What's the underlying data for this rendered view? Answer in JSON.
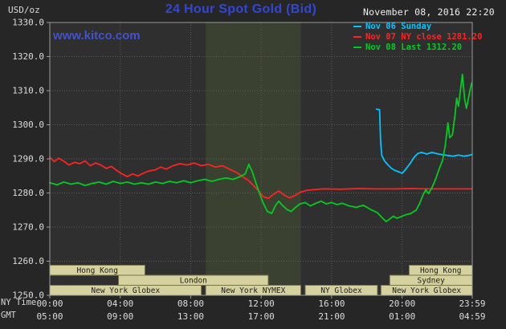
{
  "header": {
    "units": "USD/oz",
    "title": "24 Hour Spot Gold (Bid)",
    "datetime": "November 08, 2016 22:20",
    "watermark": "www.kitco.com",
    "legend": [
      {
        "label": "Nov 06 Sunday",
        "color": "#00c5ff"
      },
      {
        "label": "Nov 07 NY close 1281.20",
        "color": "#ff2222"
      },
      {
        "label": "Nov 08 Last 1312.20",
        "color": "#00cc22"
      }
    ]
  },
  "axes": {
    "x_ny_label": "NY Time",
    "x_gmt_label": "GMT",
    "y_ticks": [
      "1330.0",
      "1320.0",
      "1310.0",
      "1300.0",
      "1290.0",
      "1280.0",
      "1270.0",
      "1260.0",
      "1250.0"
    ],
    "x_ny_ticks": [
      "00:00",
      "04:00",
      "08:00",
      "12:00",
      "16:00",
      "20:00",
      "23:59"
    ],
    "x_gmt_ticks": [
      "05:00",
      "09:00",
      "13:00",
      "17:00",
      "21:00",
      "01:00",
      "04:59"
    ]
  },
  "colors": {
    "page_bg": "#262626",
    "plot_bg": "#2f2f2f",
    "band": "#3a4131",
    "border": "#9a9a9a",
    "grid": "#5a5a5a",
    "axis_text": "#dcdcdc",
    "title_blue": "#3347d1",
    "link_blue": "#4152cc",
    "session_fill": "#d6d2a0",
    "session_border": "#77744e",
    "session_text": "#1c1c1c"
  },
  "chart_data": {
    "type": "line",
    "title": "24 Hour Spot Gold (Bid)",
    "ylabel": "USD/oz",
    "ylim": [
      1250,
      1330
    ],
    "xlim_hours": [
      0,
      23.983
    ],
    "grid": true,
    "legend_position": "top-right",
    "x_ticks_hours": [
      0,
      4,
      8,
      12,
      16,
      20,
      23.983
    ],
    "y_tick_step": 10,
    "nymex_band_hours": [
      8.85,
      14.25
    ],
    "series": [
      {
        "name": "Nov 06 Sunday",
        "color": "#00c5ff",
        "points": [
          [
            18.55,
            1304.6
          ],
          [
            18.72,
            1304.4
          ],
          [
            18.78,
            1295.0
          ],
          [
            18.85,
            1291.0
          ],
          [
            19.0,
            1289.4
          ],
          [
            19.2,
            1288.2
          ],
          [
            19.4,
            1287.2
          ],
          [
            19.6,
            1286.6
          ],
          [
            19.8,
            1286.2
          ],
          [
            20.0,
            1285.8
          ],
          [
            20.15,
            1286.6
          ],
          [
            20.3,
            1287.6
          ],
          [
            20.5,
            1289.0
          ],
          [
            20.7,
            1290.6
          ],
          [
            20.9,
            1291.6
          ],
          [
            21.1,
            1291.9
          ],
          [
            21.4,
            1291.4
          ],
          [
            21.7,
            1291.9
          ],
          [
            22.0,
            1291.5
          ],
          [
            22.3,
            1291.2
          ],
          [
            22.6,
            1291.0
          ],
          [
            22.9,
            1290.8
          ],
          [
            23.2,
            1291.1
          ],
          [
            23.5,
            1290.8
          ],
          [
            23.75,
            1291.0
          ],
          [
            23.98,
            1291.3
          ]
        ]
      },
      {
        "name": "Nov 07 NY close 1281.20",
        "color": "#ff2222",
        "points": [
          [
            0,
            1290.5
          ],
          [
            0.25,
            1289.2
          ],
          [
            0.5,
            1290.2
          ],
          [
            0.8,
            1289.3
          ],
          [
            1.1,
            1288.2
          ],
          [
            1.4,
            1289.0
          ],
          [
            1.7,
            1288.6
          ],
          [
            2.0,
            1289.4
          ],
          [
            2.3,
            1288.0
          ],
          [
            2.6,
            1288.8
          ],
          [
            2.9,
            1288.2
          ],
          [
            3.2,
            1287.2
          ],
          [
            3.5,
            1287.8
          ],
          [
            3.8,
            1286.6
          ],
          [
            4.1,
            1285.6
          ],
          [
            4.4,
            1284.8
          ],
          [
            4.7,
            1285.6
          ],
          [
            5.0,
            1285.0
          ],
          [
            5.3,
            1285.8
          ],
          [
            5.6,
            1286.4
          ],
          [
            6.0,
            1286.8
          ],
          [
            6.3,
            1287.6
          ],
          [
            6.6,
            1287.0
          ],
          [
            7.0,
            1288.0
          ],
          [
            7.4,
            1288.6
          ],
          [
            7.8,
            1288.2
          ],
          [
            8.2,
            1288.8
          ],
          [
            8.6,
            1288.0
          ],
          [
            9.0,
            1288.4
          ],
          [
            9.4,
            1287.6
          ],
          [
            9.8,
            1288.0
          ],
          [
            10.2,
            1287.0
          ],
          [
            10.6,
            1286.0
          ],
          [
            11.0,
            1284.6
          ],
          [
            11.3,
            1283.6
          ],
          [
            11.6,
            1282.0
          ],
          [
            11.9,
            1280.4
          ],
          [
            12.1,
            1279.0
          ],
          [
            12.4,
            1278.4
          ],
          [
            12.7,
            1279.6
          ],
          [
            13.0,
            1280.6
          ],
          [
            13.3,
            1279.4
          ],
          [
            13.6,
            1278.6
          ],
          [
            13.9,
            1279.2
          ],
          [
            14.2,
            1280.2
          ],
          [
            14.6,
            1280.8
          ],
          [
            15.0,
            1281.0
          ],
          [
            15.5,
            1281.2
          ],
          [
            16.5,
            1281.1
          ],
          [
            17.5,
            1281.3
          ],
          [
            18.5,
            1281.2
          ],
          [
            19.5,
            1281.2
          ],
          [
            20.5,
            1281.3
          ],
          [
            21.5,
            1281.2
          ],
          [
            22.5,
            1281.2
          ],
          [
            23.98,
            1281.2
          ]
        ]
      },
      {
        "name": "Nov 08 Last 1312.20",
        "color": "#00cc22",
        "points": [
          [
            0,
            1283.0
          ],
          [
            0.4,
            1282.4
          ],
          [
            0.8,
            1283.2
          ],
          [
            1.2,
            1282.6
          ],
          [
            1.6,
            1283.0
          ],
          [
            2.0,
            1282.2
          ],
          [
            2.4,
            1282.8
          ],
          [
            2.8,
            1283.2
          ],
          [
            3.2,
            1282.6
          ],
          [
            3.6,
            1283.4
          ],
          [
            4.0,
            1282.8
          ],
          [
            4.4,
            1283.2
          ],
          [
            4.8,
            1282.6
          ],
          [
            5.2,
            1283.0
          ],
          [
            5.6,
            1282.6
          ],
          [
            6.0,
            1283.2
          ],
          [
            6.4,
            1282.8
          ],
          [
            6.8,
            1283.4
          ],
          [
            7.2,
            1283.0
          ],
          [
            7.6,
            1283.6
          ],
          [
            8.0,
            1283.0
          ],
          [
            8.4,
            1283.6
          ],
          [
            8.8,
            1284.0
          ],
          [
            9.2,
            1283.4
          ],
          [
            9.6,
            1284.0
          ],
          [
            10.0,
            1284.4
          ],
          [
            10.4,
            1284.0
          ],
          [
            10.8,
            1284.8
          ],
          [
            11.1,
            1285.6
          ],
          [
            11.3,
            1288.4
          ],
          [
            11.5,
            1286.2
          ],
          [
            11.7,
            1283.0
          ],
          [
            11.9,
            1280.0
          ],
          [
            12.1,
            1277.2
          ],
          [
            12.35,
            1274.6
          ],
          [
            12.6,
            1274.0
          ],
          [
            12.8,
            1276.2
          ],
          [
            13.0,
            1277.6
          ],
          [
            13.2,
            1276.4
          ],
          [
            13.45,
            1275.2
          ],
          [
            13.7,
            1274.6
          ],
          [
            13.95,
            1275.8
          ],
          [
            14.2,
            1276.8
          ],
          [
            14.5,
            1277.2
          ],
          [
            14.8,
            1276.2
          ],
          [
            15.1,
            1277.0
          ],
          [
            15.4,
            1277.6
          ],
          [
            15.7,
            1276.8
          ],
          [
            16.0,
            1277.2
          ],
          [
            16.3,
            1276.6
          ],
          [
            16.6,
            1277.0
          ],
          [
            17.0,
            1276.2
          ],
          [
            17.4,
            1275.8
          ],
          [
            17.8,
            1276.4
          ],
          [
            18.2,
            1275.2
          ],
          [
            18.6,
            1274.2
          ],
          [
            18.9,
            1272.6
          ],
          [
            19.1,
            1271.6
          ],
          [
            19.3,
            1272.4
          ],
          [
            19.5,
            1273.2
          ],
          [
            19.7,
            1272.6
          ],
          [
            19.9,
            1273.0
          ],
          [
            20.2,
            1273.6
          ],
          [
            20.5,
            1274.0
          ],
          [
            20.8,
            1275.0
          ],
          [
            21.0,
            1277.0
          ],
          [
            21.2,
            1279.6
          ],
          [
            21.35,
            1281.0
          ],
          [
            21.5,
            1279.8
          ],
          [
            21.7,
            1281.6
          ],
          [
            21.9,
            1284.0
          ],
          [
            22.1,
            1287.0
          ],
          [
            22.3,
            1289.6
          ],
          [
            22.45,
            1294.0
          ],
          [
            22.6,
            1300.6
          ],
          [
            22.7,
            1296.2
          ],
          [
            22.85,
            1297.0
          ],
          [
            23.0,
            1302.6
          ],
          [
            23.1,
            1307.8
          ],
          [
            23.2,
            1305.4
          ],
          [
            23.3,
            1309.6
          ],
          [
            23.42,
            1314.8
          ],
          [
            23.55,
            1307.6
          ],
          [
            23.65,
            1304.8
          ],
          [
            23.75,
            1307.4
          ],
          [
            23.85,
            1310.0
          ],
          [
            23.95,
            1312.2
          ]
        ]
      }
    ],
    "sessions": [
      {
        "row": 0,
        "label": "Hong Kong",
        "start": 0,
        "end": 5.4
      },
      {
        "row": 0,
        "label": "Hong Kong",
        "start": 20.4,
        "end": 24
      },
      {
        "row": 1,
        "label": "London",
        "start": 3.9,
        "end": 12.4
      },
      {
        "row": 1,
        "label": "Sydney",
        "start": 19.3,
        "end": 24
      },
      {
        "row": 2,
        "label": "New York Globex",
        "start": 0,
        "end": 8.6
      },
      {
        "row": 2,
        "label": "New York NYMEX",
        "start": 8.85,
        "end": 14.25
      },
      {
        "row": 2,
        "label": "NY Globex",
        "start": 14.5,
        "end": 18.6
      },
      {
        "row": 2,
        "label": "New York Globex",
        "start": 18.8,
        "end": 24
      }
    ]
  }
}
